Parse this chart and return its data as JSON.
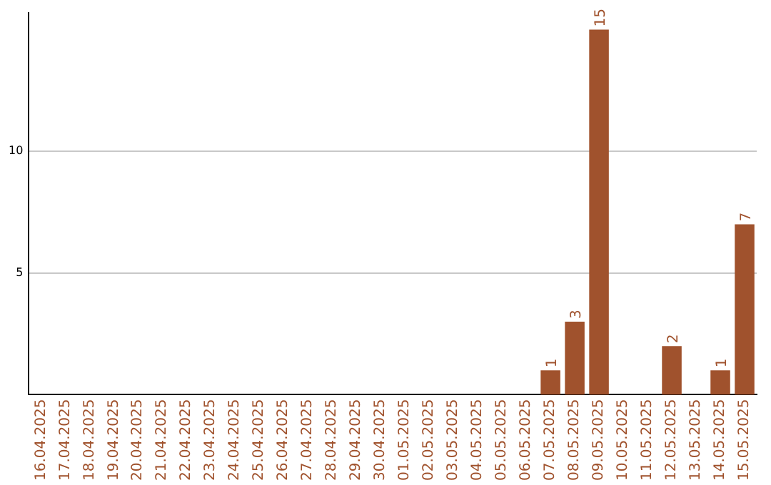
{
  "chart_data": {
    "type": "bar",
    "categories": [
      "16.04.2025",
      "17.04.2025",
      "18.04.2025",
      "19.04.2025",
      "20.04.2025",
      "21.04.2025",
      "22.04.2025",
      "23.04.2025",
      "24.04.2025",
      "25.04.2025",
      "26.04.2025",
      "27.04.2025",
      "28.04.2025",
      "29.04.2025",
      "30.04.2025",
      "01.05.2025",
      "02.05.2025",
      "03.05.2025",
      "04.05.2025",
      "05.05.2025",
      "06.05.2025",
      "07.05.2025",
      "08.05.2025",
      "09.05.2025",
      "10.05.2025",
      "11.05.2025",
      "12.05.2025",
      "13.05.2025",
      "14.05.2025",
      "15.05.2025"
    ],
    "values": [
      0,
      0,
      0,
      0,
      0,
      0,
      0,
      0,
      0,
      0,
      0,
      0,
      0,
      0,
      0,
      0,
      0,
      0,
      0,
      0,
      0,
      1,
      3,
      15,
      0,
      0,
      2,
      0,
      1,
      7
    ],
    "value_labels": [
      null,
      null,
      null,
      null,
      null,
      null,
      null,
      null,
      null,
      null,
      null,
      null,
      null,
      null,
      null,
      null,
      null,
      null,
      null,
      null,
      null,
      "1",
      "3",
      "15",
      null,
      null,
      "2",
      null,
      "1",
      "7"
    ],
    "color": "#a0522d",
    "ylim": [
      0,
      15.7
    ],
    "yticks": [
      5,
      10
    ],
    "grid": "y",
    "legend": false
  }
}
